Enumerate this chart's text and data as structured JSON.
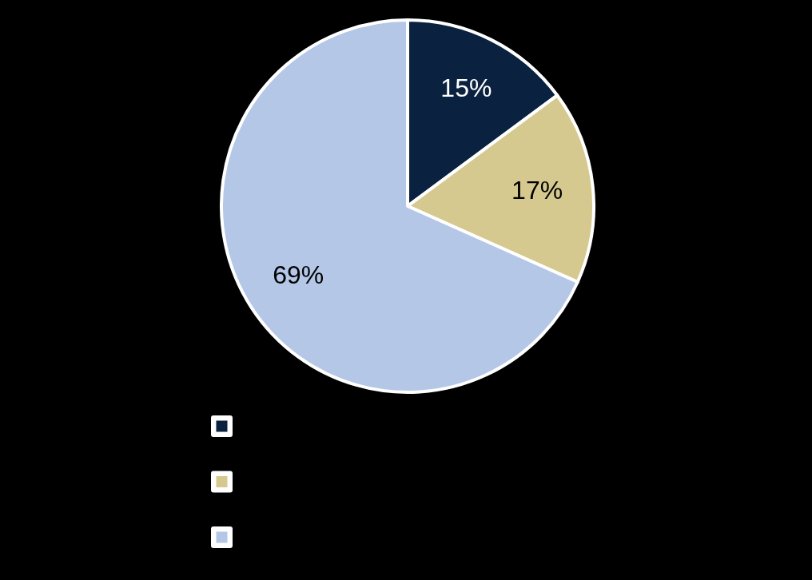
{
  "chart_data": {
    "type": "pie",
    "categories": [
      null,
      null,
      null
    ],
    "values": [
      15,
      17,
      69
    ],
    "colors": [
      "#0a223f",
      "#d6c98f",
      "#b4c7e7"
    ],
    "value_labels": [
      "15%",
      "17%",
      "69%"
    ]
  }
}
